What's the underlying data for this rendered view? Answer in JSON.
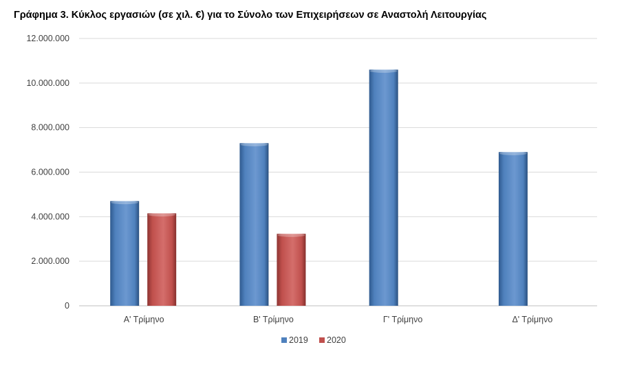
{
  "chart_data": {
    "type": "bar",
    "title": "Γράφημα 3.  Κύκλος εργασιών (σε χιλ. €) για το Σύνολο των Επιχειρήσεων σε Αναστολή Λειτουργίας",
    "categories": [
      "Α' Τρίμηνο",
      "Β' Τρίμηνο",
      "Γ' Τρίμηνο",
      "Δ' Τρίμηνο"
    ],
    "series": [
      {
        "name": "2019",
        "color": "#4f81bd",
        "values": [
          4700000,
          7300000,
          10600000,
          6900000
        ]
      },
      {
        "name": "2020",
        "color": "#c0504d",
        "values": [
          4150000,
          3230000,
          null,
          null
        ]
      }
    ],
    "ylim": [
      0,
      12000000
    ],
    "yticks": [
      0,
      2000000,
      4000000,
      6000000,
      8000000,
      10000000,
      12000000
    ],
    "ytick_labels": [
      "0",
      "2.000.000",
      "4.000.000",
      "6.000.000",
      "8.000.000",
      "10.000.000",
      "12.000.000"
    ],
    "grid": true,
    "legend": "bottom-center"
  }
}
